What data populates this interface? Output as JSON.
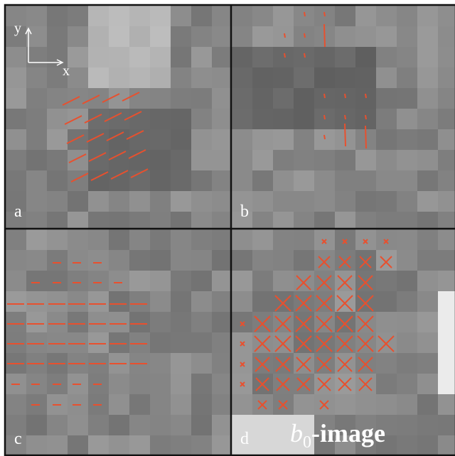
{
  "axes": {
    "y": "y",
    "x": "x"
  },
  "panels": [
    {
      "label": "a"
    },
    {
      "label": "b"
    },
    {
      "label": "c"
    },
    {
      "label": "d"
    }
  ],
  "caption": {
    "base": "b",
    "subscript": "0",
    "suffix": "-image"
  }
}
